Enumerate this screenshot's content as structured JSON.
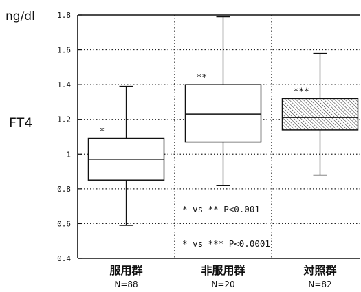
{
  "chart_data": {
    "type": "box",
    "ylabel": "FT4",
    "yunit": "ng/dl",
    "ylim": [
      0.4,
      1.8
    ],
    "yticks": [
      0.4,
      0.6,
      0.8,
      1.0,
      1.2,
      1.4,
      1.6,
      1.8
    ],
    "ytick_labels": [
      "0.4",
      "0.6",
      "0.8",
      "1",
      "1.2",
      "1.4",
      "1.6",
      "1.8"
    ],
    "grid": true,
    "categories": [
      "服用群",
      "非服用群",
      "対照群"
    ],
    "n_labels": [
      "N=88",
      "N=20",
      "N=82"
    ],
    "boxes": [
      {
        "whisker_low": 0.59,
        "q1": 0.85,
        "median": 0.97,
        "q3": 1.09,
        "whisker_high": 1.39,
        "marker": "*",
        "hatched": false
      },
      {
        "whisker_low": 0.82,
        "q1": 1.07,
        "median": 1.23,
        "q3": 1.4,
        "whisker_high": 1.79,
        "marker": "**",
        "hatched": false
      },
      {
        "whisker_low": 0.88,
        "q1": 1.14,
        "median": 1.21,
        "q3": 1.32,
        "whisker_high": 1.58,
        "marker": "***",
        "hatched": true
      }
    ],
    "annotations": [
      "* vs ** P<0.001",
      "* vs *** P<0.0001"
    ]
  }
}
